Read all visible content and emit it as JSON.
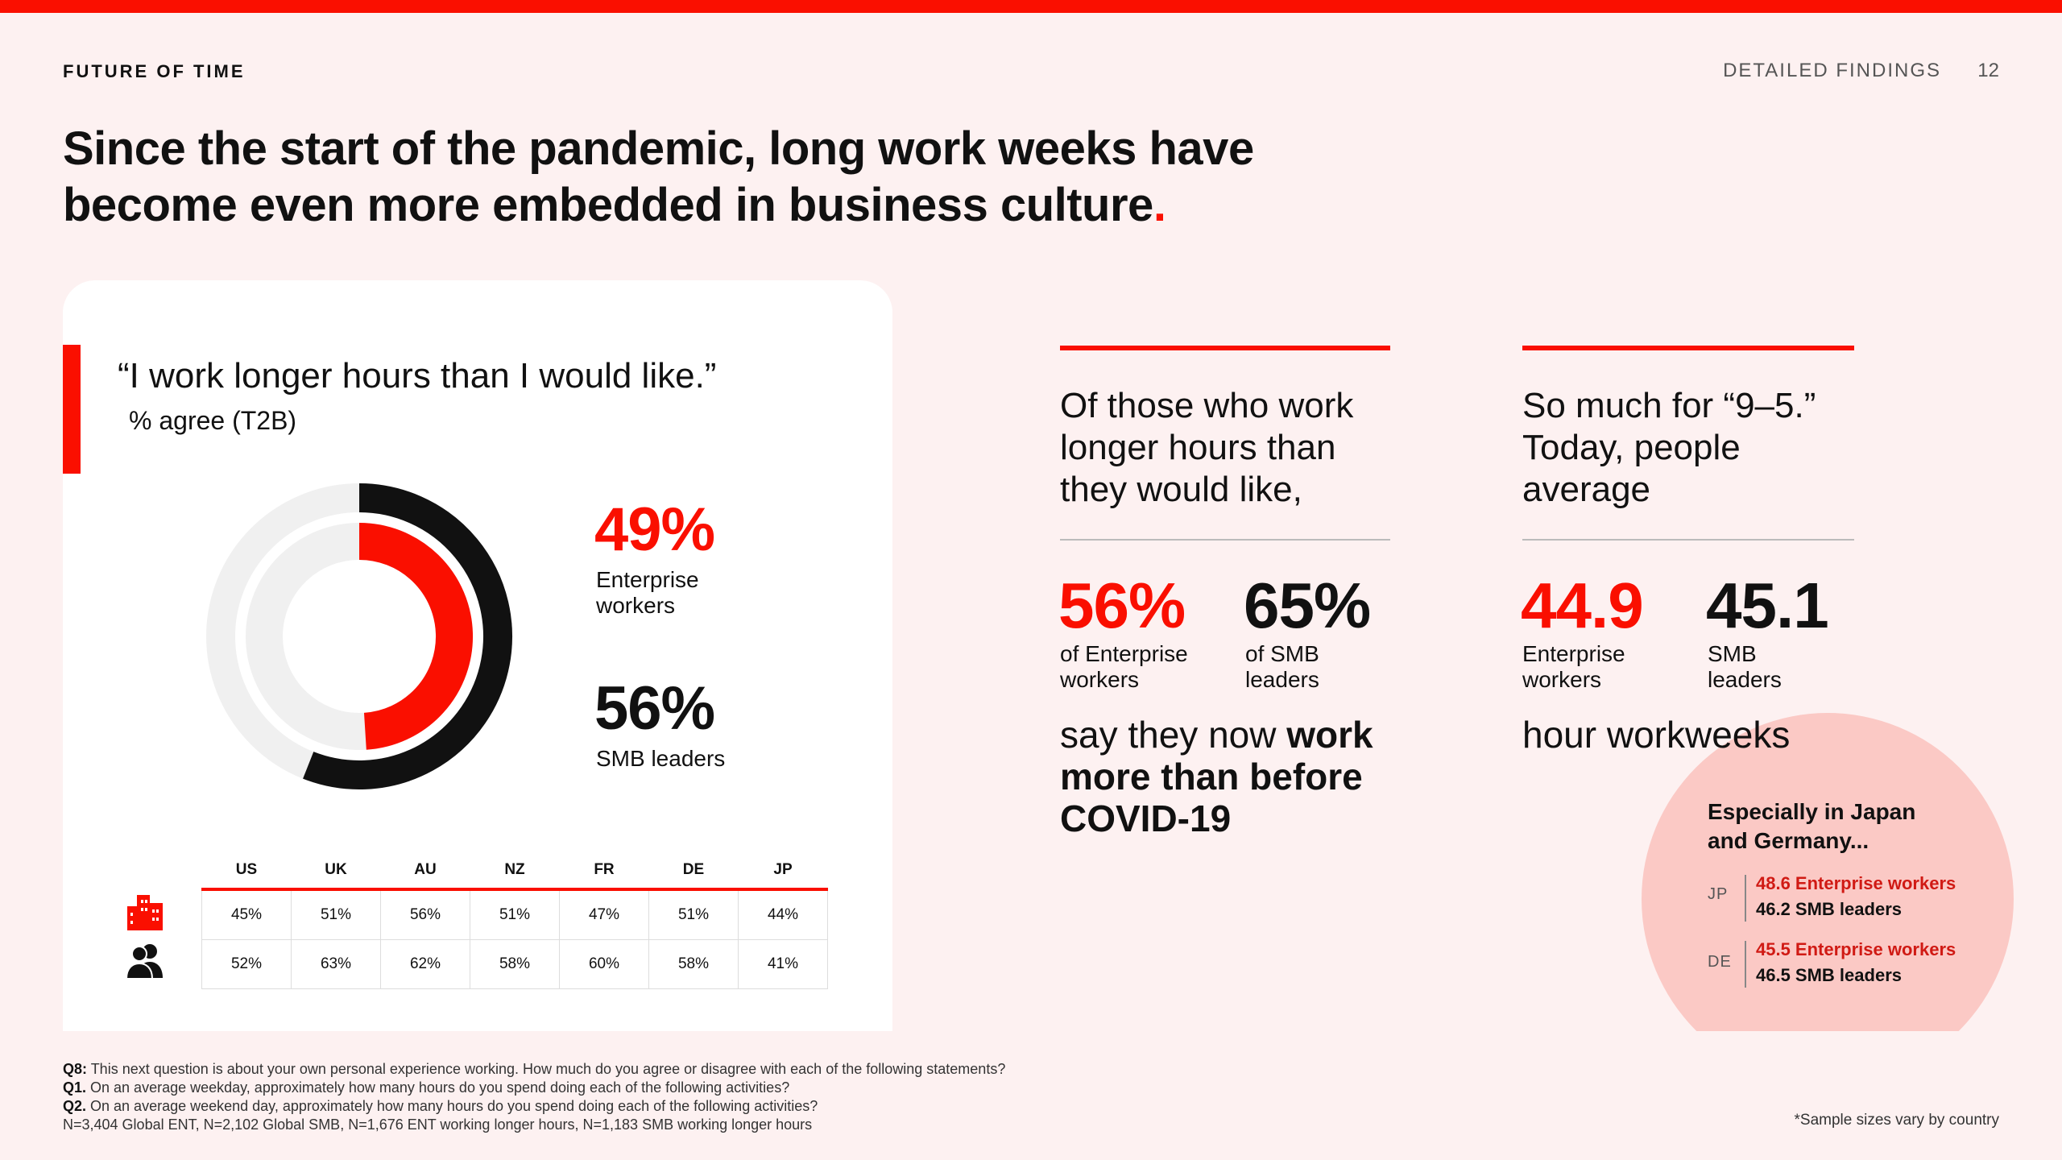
{
  "header": {
    "brand": "FUTURE OF TIME",
    "section": "DETAILED FINDINGS",
    "page_number": "12"
  },
  "headline": {
    "line1": "Since the start of the pandemic, long work weeks have",
    "line2": "become even more embedded in business culture",
    "dot": "."
  },
  "left_panel": {
    "quote": "“I work longer hours than I would like.”",
    "subtitle": "% agree (T2B)",
    "enterprise_value": "49%",
    "enterprise_label_1": "Enterprise",
    "enterprise_label_2": "workers",
    "smb_value": "56%",
    "smb_label": "SMB leaders",
    "donut": {
      "enterprise_pct": 49,
      "smb_pct": 56
    },
    "table": {
      "columns": [
        "US",
        "UK",
        "AU",
        "NZ",
        "FR",
        "DE",
        "JP"
      ],
      "enterprise_row": [
        "45%",
        "51%",
        "56%",
        "51%",
        "47%",
        "51%",
        "44%"
      ],
      "smb_row": [
        "52%",
        "63%",
        "62%",
        "58%",
        "60%",
        "58%",
        "41%"
      ]
    }
  },
  "middle": {
    "head_1": "Of those who work",
    "head_2": "longer hours than",
    "head_3": "they would like,",
    "ent_value": "56%",
    "ent_label_1": "of Enterprise",
    "ent_label_2": "workers",
    "smb_value": "65%",
    "smb_label_1": "of SMB",
    "smb_label_2": "leaders",
    "foot_1a": "say they now ",
    "foot_1b": "work",
    "foot_2": "more than before",
    "foot_3": "COVID-19"
  },
  "right": {
    "head_1": "So much for “9–5.”",
    "head_2": "Today, people",
    "head_3": "average",
    "ent_value": "44.9",
    "ent_label_1": "Enterprise",
    "ent_label_2": "workers",
    "smb_value": "45.1",
    "smb_label_1": "SMB",
    "smb_label_2": "leaders",
    "foot": "hour workweeks"
  },
  "bubble": {
    "title_1": "Especially in Japan",
    "title_2": "and Germany...",
    "jp_code": "JP",
    "jp_ent": "48.6 Enterprise workers",
    "jp_smb": "46.2 SMB leaders",
    "de_code": "DE",
    "de_ent": "45.5 Enterprise workers",
    "de_smb": "46.5 SMB leaders"
  },
  "footnote": {
    "q8_tag": "Q8:",
    "q8": " This next question is about your own personal experience working. How much do you agree or disagree with each of the following statements?",
    "q1_tag": "Q1.",
    "q1": " On an average weekday, approximately how many hours do you spend doing each of the following activities?",
    "q2_tag": "Q2.",
    "q2": " On an average weekend day, approximately how many hours do you spend doing each of the following activities?",
    "sample_line": "N=3,404 Global ENT, N=2,102 Global SMB, N=1,676 ENT working longer hours, N=1,183 SMB working longer hours",
    "sample_note": "*Sample sizes vary by country"
  },
  "colors": {
    "accent": "#fa0f00",
    "dark": "#111111",
    "track": "#f0f0f0",
    "bubble": "#fbc9c5"
  }
}
